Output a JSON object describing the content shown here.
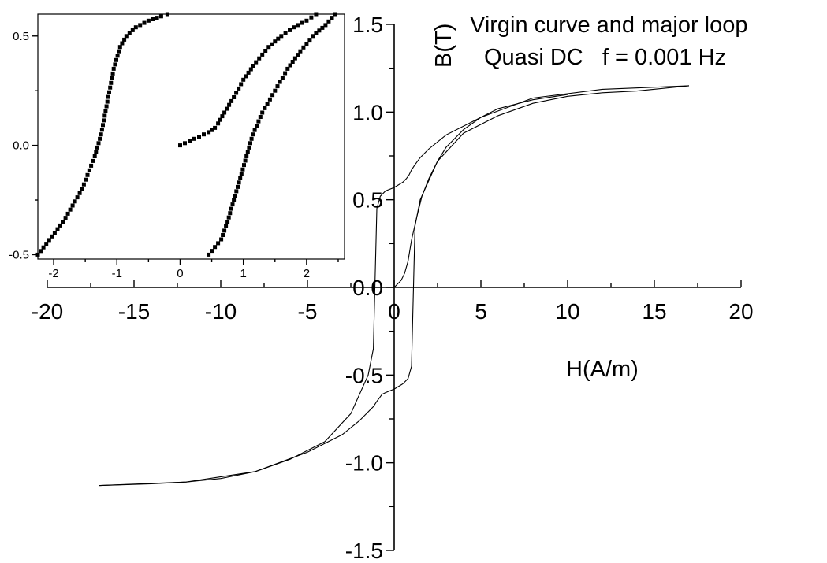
{
  "chart_data": [
    {
      "type": "line",
      "title": "",
      "annotations": [
        "Virgin curve and major loop",
        "Quasi DC   f = 0.001 Hz"
      ],
      "xlabel": "H(A/m)",
      "ylabel": "B(T)",
      "xlim": [
        -20,
        20
      ],
      "ylim": [
        -1.5,
        1.5
      ],
      "x_ticks": [
        "-20",
        "-15",
        "-10",
        "-5",
        "0",
        "5",
        "10",
        "15",
        "20"
      ],
      "y_ticks": [
        "-1.5",
        "-1.0",
        "-0.5",
        "0.0",
        "0.5",
        "1.0",
        "1.5"
      ],
      "grid": false,
      "series": [
        {
          "x": [
            17,
            12,
            8,
            5,
            3,
            2,
            1.5,
            1.2,
            1.0,
            0.85,
            0.7,
            0.5,
            0,
            -0.5,
            -0.8,
            -1.0,
            -1.2,
            -1.5,
            -2.5,
            -4,
            -6,
            -8,
            -10,
            -12,
            -14,
            -17
          ],
          "y": [
            1.15,
            1.13,
            1.08,
            0.97,
            0.87,
            0.79,
            0.74,
            0.7,
            0.67,
            0.64,
            0.62,
            0.6,
            0.57,
            0.55,
            0.52,
            0.45,
            -0.35,
            -0.5,
            -0.72,
            -0.88,
            -0.98,
            -1.05,
            -1.09,
            -1.11,
            -1.12,
            -1.13
          ]
        },
        {
          "x": [
            -17,
            -12,
            -8,
            -5,
            -3,
            -2,
            -1.5,
            -1.2,
            -1.0,
            -0.85,
            -0.7,
            -0.5,
            0,
            0.5,
            0.8,
            1.0,
            1.2,
            1.5,
            2.5,
            4,
            6,
            8,
            10,
            12,
            14,
            17
          ],
          "y": [
            -1.13,
            -1.11,
            -1.05,
            -0.94,
            -0.84,
            -0.76,
            -0.71,
            -0.68,
            -0.65,
            -0.63,
            -0.61,
            -0.6,
            -0.58,
            -0.55,
            -0.52,
            -0.45,
            0.35,
            0.5,
            0.72,
            0.88,
            0.98,
            1.05,
            1.09,
            1.11,
            1.12,
            1.15
          ]
        },
        {
          "x": [
            0,
            0.2,
            0.4,
            0.6,
            0.8,
            1.0,
            1.3,
            1.6,
            2.0,
            2.5,
            3,
            4,
            5,
            6,
            8,
            10
          ],
          "y": [
            0,
            0.02,
            0.04,
            0.08,
            0.15,
            0.27,
            0.4,
            0.52,
            0.62,
            0.72,
            0.8,
            0.9,
            0.97,
            1.02,
            1.07,
            1.1
          ]
        }
      ]
    },
    {
      "type": "scatter",
      "title": "",
      "xlim": [
        -2.25,
        2.6
      ],
      "ylim": [
        -0.52,
        0.6
      ],
      "x_ticks": [
        "-2",
        "-1",
        "0",
        "1",
        "2"
      ],
      "y_ticks": [
        "-0.5",
        "0.0",
        "0.5"
      ],
      "grid": false,
      "series": [
        {
          "x": [
            -2.25,
            -1.85,
            -1.55,
            -1.35,
            -1.25,
            -1.15,
            -1.05,
            -0.95,
            -0.85,
            -0.7,
            -0.5,
            -0.3,
            -0.2
          ],
          "y": [
            -0.5,
            -0.35,
            -0.2,
            -0.05,
            0.05,
            0.2,
            0.35,
            0.45,
            0.5,
            0.54,
            0.57,
            0.59,
            0.6
          ]
        },
        {
          "x": [
            0,
            0.15,
            0.3,
            0.45,
            0.55,
            0.6,
            0.7,
            0.85,
            1.0,
            1.2,
            1.4,
            1.6,
            1.8,
            2.0,
            2.15
          ],
          "y": [
            0,
            0.02,
            0.04,
            0.06,
            0.08,
            0.1,
            0.15,
            0.22,
            0.3,
            0.38,
            0.45,
            0.5,
            0.54,
            0.57,
            0.6
          ]
        },
        {
          "x": [
            0.45,
            0.65,
            0.75,
            0.85,
            0.95,
            1.05,
            1.15,
            1.3,
            1.5,
            1.7,
            1.9,
            2.1,
            2.3,
            2.45
          ],
          "y": [
            -0.5,
            -0.43,
            -0.35,
            -0.25,
            -0.15,
            -0.05,
            0.05,
            0.15,
            0.25,
            0.35,
            0.43,
            0.5,
            0.55,
            0.6
          ]
        }
      ]
    }
  ]
}
